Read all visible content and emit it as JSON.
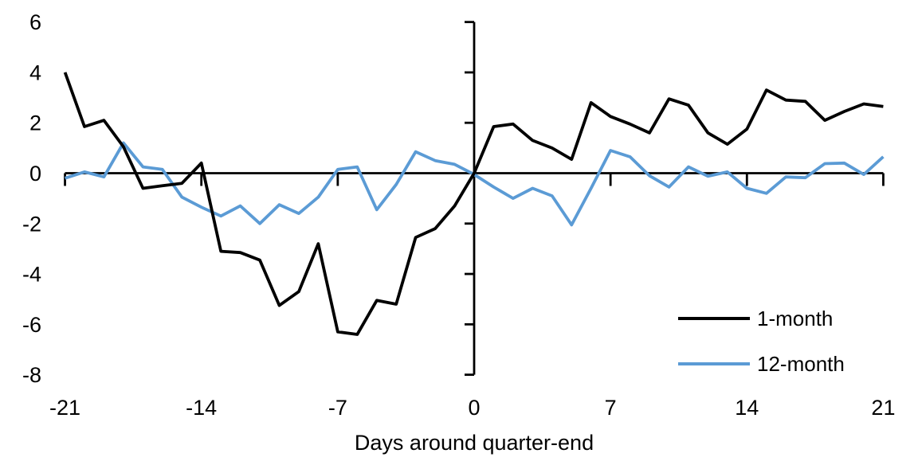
{
  "page": {
    "background": "#ffffff",
    "text_color": "#000000"
  },
  "chart_data": {
    "type": "line",
    "title": "",
    "xlabel": "Days around quarter-end",
    "ylabel": "",
    "xlim": [
      -21,
      21
    ],
    "ylim": [
      -8,
      6
    ],
    "grid": false,
    "legend_position": "inside-bottom-right",
    "axis_color": "#000000",
    "xticks": {
      "values": [
        -21,
        -14,
        -7,
        0,
        7,
        14,
        21
      ],
      "labels": [
        "-21",
        "-14",
        "-7",
        "0",
        "7",
        "14",
        "21"
      ]
    },
    "yticks": {
      "values": [
        6,
        4,
        2,
        0,
        -2,
        -4,
        -6,
        -8
      ],
      "labels": [
        "6",
        "4",
        "2",
        "0",
        "-2",
        "-4",
        "-6",
        "-8"
      ]
    },
    "x": [
      -21,
      -20,
      -19,
      -18,
      -17,
      -16,
      -15,
      -14,
      -13,
      -12,
      -11,
      -10,
      -9,
      -8,
      -7,
      -6,
      -5,
      -4,
      -3,
      -2,
      -1,
      0,
      1,
      2,
      3,
      4,
      5,
      6,
      7,
      8,
      9,
      10,
      11,
      12,
      13,
      14,
      15,
      16,
      17,
      18,
      19,
      20,
      21
    ],
    "series": [
      {
        "name": "1-month",
        "color": "#000000",
        "values": [
          4.0,
          1.85,
          2.1,
          1.05,
          -0.6,
          -0.5,
          -0.4,
          0.4,
          -3.1,
          -3.15,
          -3.45,
          -5.25,
          -4.7,
          -2.8,
          -6.3,
          -6.4,
          -5.05,
          -5.2,
          -2.55,
          -2.2,
          -1.3,
          0.0,
          1.85,
          1.95,
          1.3,
          1.0,
          0.55,
          2.8,
          2.25,
          1.95,
          1.6,
          2.95,
          2.7,
          1.6,
          1.15,
          1.75,
          3.3,
          2.9,
          2.85,
          2.1,
          2.45,
          2.75,
          2.65
        ]
      },
      {
        "name": "12-month",
        "color": "#5B9BD5",
        "values": [
          -0.2,
          0.05,
          -0.15,
          1.2,
          0.25,
          0.15,
          -0.95,
          -1.35,
          -1.7,
          -1.3,
          -2.0,
          -1.25,
          -1.6,
          -0.95,
          0.15,
          0.25,
          -1.45,
          -0.45,
          0.85,
          0.5,
          0.35,
          -0.05,
          -0.55,
          -1.0,
          -0.6,
          -0.9,
          -2.05,
          -0.6,
          0.9,
          0.65,
          -0.1,
          -0.55,
          0.25,
          -0.12,
          0.05,
          -0.6,
          -0.8,
          -0.15,
          -0.18,
          0.38,
          0.4,
          -0.05,
          0.65
        ]
      }
    ]
  }
}
